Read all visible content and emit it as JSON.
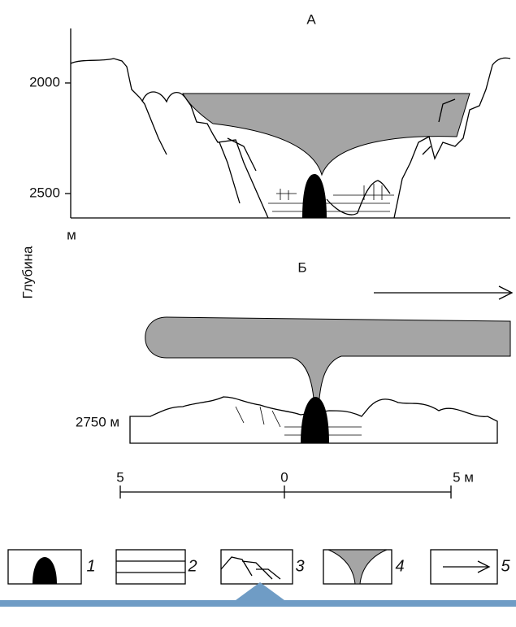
{
  "panel_a": {
    "title": "А",
    "y_ticks": [
      "2000",
      "2500"
    ],
    "unit": "м"
  },
  "y_axis_label": "Глубина",
  "panel_b": {
    "title": "Б",
    "depth_label": "2750 м"
  },
  "scale_bar": {
    "labels": [
      "5",
      "0",
      "5 м"
    ]
  },
  "legend": {
    "items": [
      "1",
      "2",
      "3",
      "4",
      "5"
    ]
  }
}
